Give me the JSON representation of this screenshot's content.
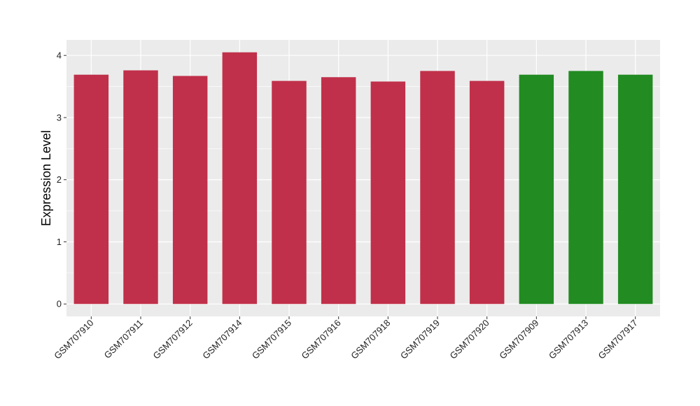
{
  "chart_data": {
    "type": "bar",
    "title": "",
    "xlabel": "",
    "ylabel": "Expression Level",
    "ylim": [
      -0.2,
      4.25
    ],
    "yticks": [
      0,
      1,
      2,
      3,
      4
    ],
    "grid": true,
    "categories": [
      "GSM707910",
      "GSM707911",
      "GSM707912",
      "GSM707914",
      "GSM707915",
      "GSM707916",
      "GSM707918",
      "GSM707919",
      "GSM707920",
      "GSM707909",
      "GSM707913",
      "GSM707917"
    ],
    "values": [
      3.69,
      3.76,
      3.67,
      4.05,
      3.59,
      3.65,
      3.58,
      3.75,
      3.59,
      3.69,
      3.75,
      3.69
    ],
    "bar_colors": [
      "#c0304a",
      "#c0304a",
      "#c0304a",
      "#c0304a",
      "#c0304a",
      "#c0304a",
      "#c0304a",
      "#c0304a",
      "#c0304a",
      "#228b22",
      "#228b22",
      "#228b22"
    ],
    "panel_background": "#ebebeb",
    "grid_color": "#ffffff"
  }
}
